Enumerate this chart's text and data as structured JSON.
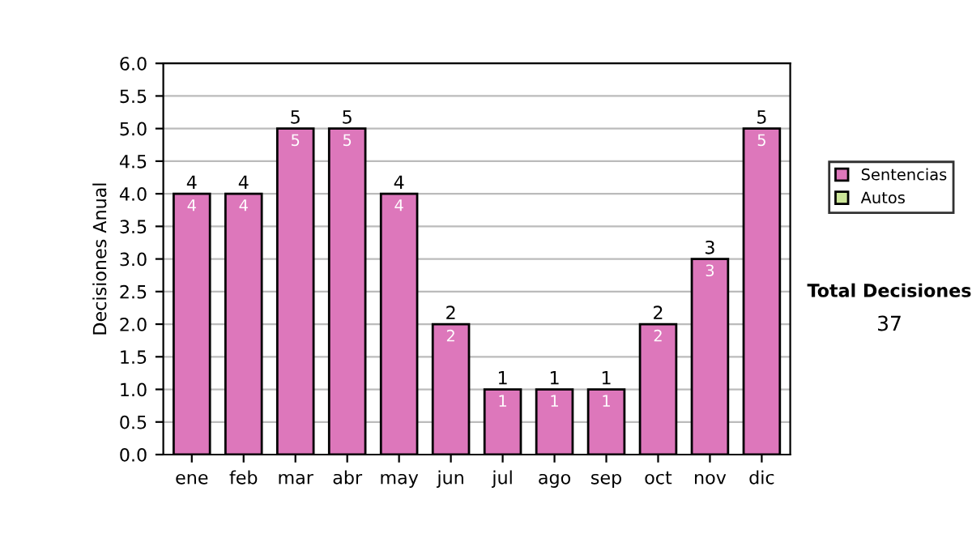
{
  "chart_data": {
    "type": "bar",
    "ylabel": "Decisiones Anual",
    "categories": [
      "ene",
      "feb",
      "mar",
      "abr",
      "may",
      "jun",
      "jul",
      "ago",
      "sep",
      "oct",
      "nov",
      "dic"
    ],
    "series": [
      {
        "name": "Sentencias",
        "color": "#dd77bb",
        "values": [
          4,
          4,
          5,
          5,
          4,
          2,
          1,
          1,
          1,
          2,
          3,
          5
        ]
      },
      {
        "name": "Autos",
        "color": "#cce699",
        "values": [
          null,
          null,
          null,
          null,
          null,
          null,
          null,
          null,
          null,
          null,
          null,
          null
        ]
      }
    ],
    "stacked": true,
    "data_labels": true,
    "totals": [
      "4",
      "4",
      "5",
      "5",
      "4",
      "2",
      "1",
      "1",
      "1",
      "2",
      "3",
      "5"
    ],
    "ylim": [
      0,
      6
    ],
    "yticks": [
      {
        "value": 0,
        "label": "0.0"
      },
      {
        "value": 0.5,
        "label": "0.5"
      },
      {
        "value": 1,
        "label": "1.0"
      },
      {
        "value": 1.5,
        "label": "1.5"
      },
      {
        "value": 2,
        "label": "2.0"
      },
      {
        "value": 2.5,
        "label": "2.5"
      },
      {
        "value": 3,
        "label": "3.0"
      },
      {
        "value": 3.5,
        "label": "3.5"
      },
      {
        "value": 4,
        "label": "4.0"
      },
      {
        "value": 4.5,
        "label": "4.5"
      },
      {
        "value": 5,
        "label": "5.0"
      },
      {
        "value": 5.5,
        "label": "5.5"
      },
      {
        "value": 6,
        "label": "6.0"
      }
    ],
    "grid": "y",
    "legend": "right",
    "annotations": [
      "Total Decisiones",
      "37"
    ]
  }
}
